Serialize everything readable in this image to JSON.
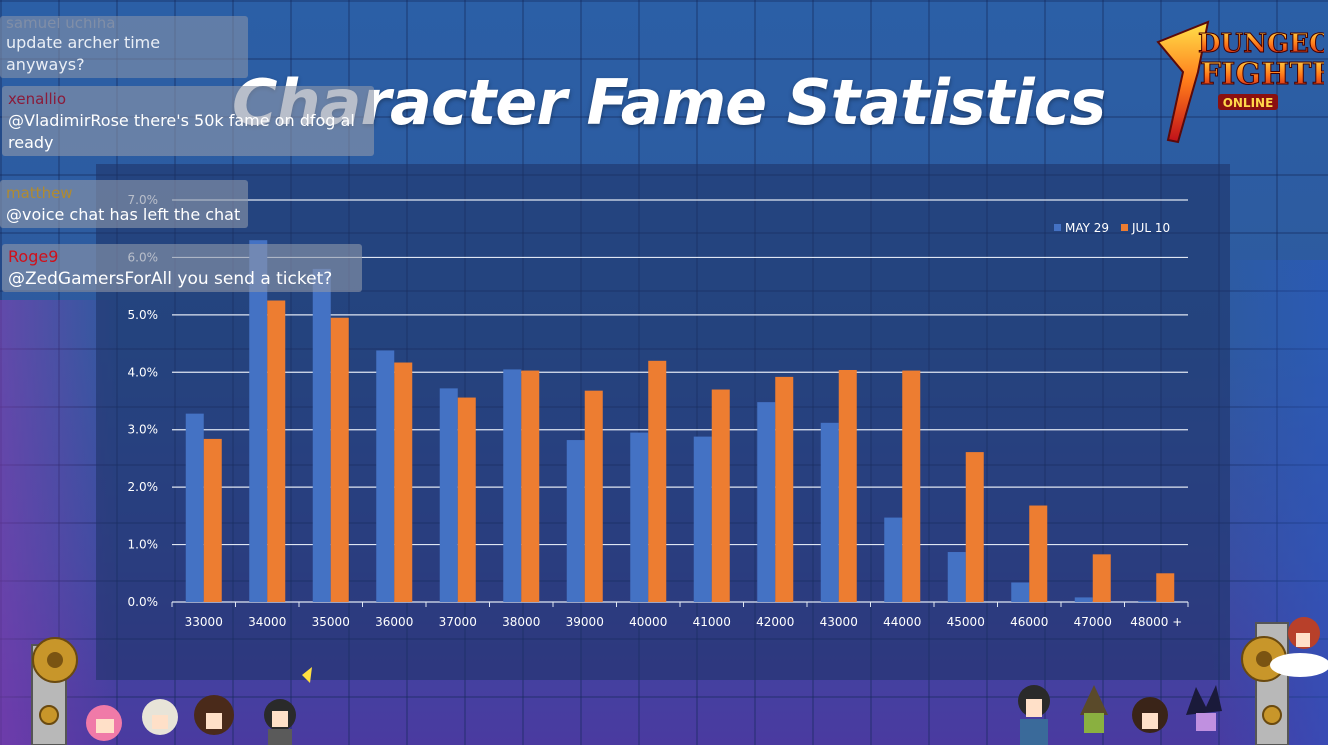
{
  "overlay": {
    "title": "Character Fame Statistics",
    "logo_text": [
      "DUNGEON",
      "FIGHTER",
      "ONLINE"
    ],
    "chat": [
      {
        "user": "samuel uchiha",
        "user_color": "#9aa0b0",
        "text": "update archer time anyways?"
      },
      {
        "user": "xenallio",
        "user_color": "#8a1b3a",
        "text": "@VladimirRose there's 50k fame on dfog al",
        "text2": "ready"
      },
      {
        "user": "matthew",
        "user_color": "#a8893a",
        "text": "@voice chat has left the chat"
      },
      {
        "user": "Roge9",
        "user_color": "#d0101a",
        "text": "@ZedGamersForAll you send a ticket?"
      }
    ]
  },
  "colors": {
    "may": "#4472c4",
    "jul": "#ed7d31"
  },
  "chart_data": {
    "type": "bar",
    "categories": [
      "33000",
      "34000",
      "35000",
      "36000",
      "37000",
      "38000",
      "39000",
      "40000",
      "41000",
      "42000",
      "43000",
      "44000",
      "45000",
      "46000",
      "47000",
      "48000 +"
    ],
    "series": [
      {
        "name": "MAY 29",
        "values": [
          3.28,
          6.3,
          5.8,
          4.38,
          3.72,
          4.05,
          2.82,
          2.95,
          2.88,
          3.48,
          3.12,
          1.47,
          0.87,
          0.34,
          0.08,
          0.02
        ]
      },
      {
        "name": "JUL 10",
        "values": [
          2.84,
          5.25,
          4.95,
          4.17,
          3.56,
          4.03,
          3.68,
          4.2,
          3.7,
          3.92,
          4.04,
          4.03,
          2.61,
          1.68,
          0.83,
          0.5
        ]
      }
    ],
    "yticks": [
      "0.0%",
      "1.0%",
      "2.0%",
      "3.0%",
      "4.0%",
      "5.0%",
      "6.0%",
      "7.0%"
    ],
    "ylim": [
      0,
      7
    ],
    "legend": "top-right",
    "grid": true
  }
}
